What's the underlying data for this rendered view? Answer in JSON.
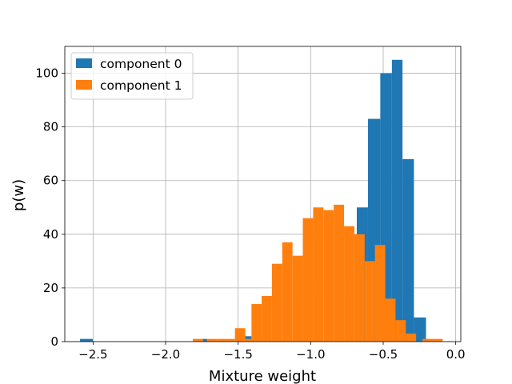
{
  "chart_data": {
    "type": "histogram",
    "xlabel": "Mixture weight",
    "ylabel": "p(w)",
    "xlim": [
      -2.695,
      0.035
    ],
    "ylim": [
      0,
      110
    ],
    "xticks": [
      -2.5,
      -2.0,
      -1.5,
      -1.0,
      -0.5,
      0.0
    ],
    "xtick_labels": [
      "−2.5",
      "−2.0",
      "−1.5",
      "−1.0",
      "−0.5",
      "0.0"
    ],
    "yticks": [
      0,
      20,
      40,
      60,
      80,
      100
    ],
    "ytick_labels": [
      "0",
      "20",
      "40",
      "60",
      "80",
      "100"
    ],
    "grid": true,
    "legend_position": "top-left",
    "series": [
      {
        "name": "component 0",
        "color": "#1f77b4",
        "bins": [
          {
            "x0": -2.59,
            "x1": -2.502,
            "count": 1
          },
          {
            "x0": -1.751,
            "x1": -1.716,
            "count": 1
          },
          {
            "x0": -1.451,
            "x1": -1.408,
            "count": 2
          },
          {
            "x0": -0.682,
            "x1": -0.605,
            "count": 50
          },
          {
            "x0": -0.605,
            "x1": -0.52,
            "count": 83
          },
          {
            "x0": -0.52,
            "x1": -0.44,
            "count": 100
          },
          {
            "x0": -0.44,
            "x1": -0.367,
            "count": 105
          },
          {
            "x0": -0.367,
            "x1": -0.288,
            "count": 68
          },
          {
            "x0": -0.288,
            "x1": -0.205,
            "count": 9
          }
        ]
      },
      {
        "name": "component 1",
        "color": "#ff7f0e",
        "bins": [
          {
            "x0": -1.812,
            "x1": -1.741,
            "count": 1
          },
          {
            "x0": -1.716,
            "x1": -1.645,
            "count": 1
          },
          {
            "x0": -1.645,
            "x1": -1.522,
            "count": 1
          },
          {
            "x0": -1.522,
            "x1": -1.451,
            "count": 5
          },
          {
            "x0": -1.451,
            "x1": -1.408,
            "count": 1
          },
          {
            "x0": -1.408,
            "x1": -1.338,
            "count": 14
          },
          {
            "x0": -1.338,
            "x1": -1.267,
            "count": 17
          },
          {
            "x0": -1.267,
            "x1": -1.196,
            "count": 29
          },
          {
            "x0": -1.196,
            "x1": -1.125,
            "count": 37
          },
          {
            "x0": -1.125,
            "x1": -1.054,
            "count": 32
          },
          {
            "x0": -1.054,
            "x1": -0.983,
            "count": 46
          },
          {
            "x0": -0.983,
            "x1": -0.912,
            "count": 50
          },
          {
            "x0": -0.912,
            "x1": -0.841,
            "count": 49
          },
          {
            "x0": -0.841,
            "x1": -0.77,
            "count": 51
          },
          {
            "x0": -0.77,
            "x1": -0.699,
            "count": 43
          },
          {
            "x0": -0.699,
            "x1": -0.628,
            "count": 40
          },
          {
            "x0": -0.628,
            "x1": -0.557,
            "count": 30
          },
          {
            "x0": -0.557,
            "x1": -0.486,
            "count": 36
          },
          {
            "x0": -0.486,
            "x1": -0.415,
            "count": 16
          },
          {
            "x0": -0.415,
            "x1": -0.344,
            "count": 8
          },
          {
            "x0": -0.344,
            "x1": -0.273,
            "count": 3
          },
          {
            "x0": -0.23,
            "x1": -0.09,
            "count": 1
          }
        ]
      }
    ]
  }
}
